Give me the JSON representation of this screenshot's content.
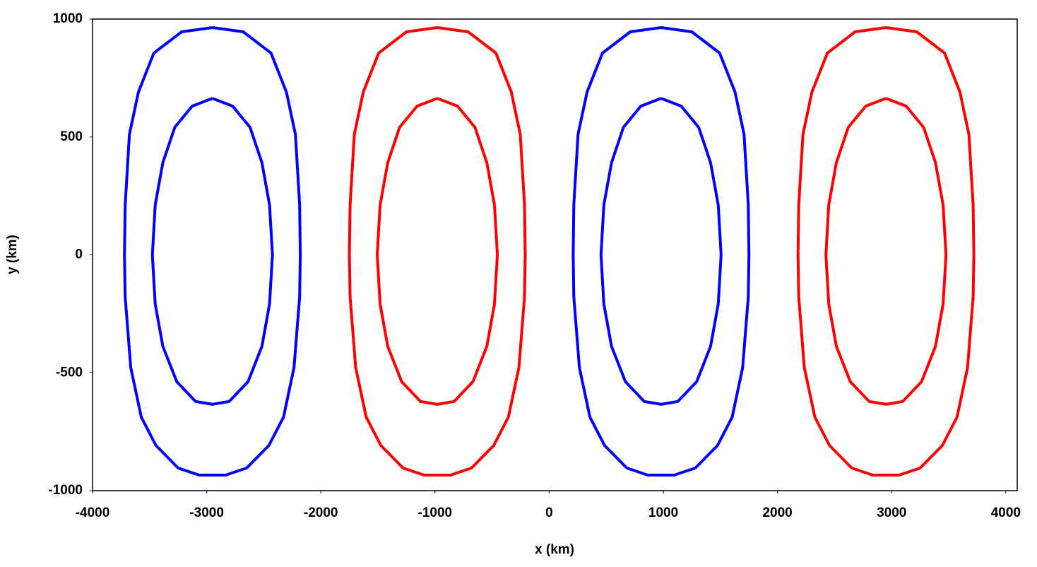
{
  "chart_data": {
    "type": "line",
    "xlabel": "x (km)",
    "ylabel": "y (km)",
    "xlim": [
      -4000,
      4100
    ],
    "ylim": [
      -1000,
      1000
    ],
    "xticks": [
      -4000,
      -3000,
      -2000,
      -1000,
      0,
      1000,
      2000,
      3000,
      4000
    ],
    "yticks": [
      -1000,
      -500,
      0,
      500,
      1000
    ],
    "grid": false,
    "series": [
      {
        "color": "#0000ff",
        "x": [
          -2950,
          -2680,
          -2437,
          -2302,
          -2223,
          -2186,
          -2180,
          -2186,
          -2235,
          -2327,
          -2455,
          -2650,
          -2834,
          -3066,
          -3250,
          -3445,
          -3573,
          -3665,
          -3714,
          -3720,
          -3714,
          -3677,
          -3598,
          -3463,
          -3220,
          -2950
        ],
        "y": [
          964,
          946,
          856,
          691,
          511,
          211,
          0,
          -178,
          -478,
          -688,
          -808,
          -904,
          -934,
          -934,
          -904,
          -808,
          -688,
          -478,
          -178,
          0,
          211,
          511,
          691,
          856,
          946,
          964
        ]
      },
      {
        "color": "#0000ff",
        "x": [
          -2950,
          -2773,
          -2620,
          -2516,
          -2449,
          -2424,
          -2449,
          -2516,
          -2638,
          -2803,
          -2950,
          -3097,
          -3262,
          -3384,
          -3451,
          -3476,
          -3451,
          -3384,
          -3280,
          -3127,
          -2950
        ],
        "y": [
          664,
          631,
          541,
          391,
          211,
          0,
          -208,
          -388,
          -538,
          -622,
          -634,
          -622,
          -538,
          -388,
          -208,
          0,
          211,
          391,
          541,
          631,
          664
        ]
      },
      {
        "color": "#ff0000",
        "x": [
          -980,
          -710,
          -467,
          -332,
          -253,
          -216,
          -210,
          -216,
          -265,
          -357,
          -485,
          -680,
          -864,
          -1096,
          -1280,
          -1475,
          -1603,
          -1695,
          -1744,
          -1750,
          -1744,
          -1707,
          -1628,
          -1493,
          -1250,
          -980
        ],
        "y": [
          964,
          946,
          856,
          691,
          511,
          211,
          0,
          -178,
          -478,
          -688,
          -808,
          -904,
          -934,
          -934,
          -904,
          -808,
          -688,
          -478,
          -178,
          0,
          211,
          511,
          691,
          856,
          946,
          964
        ]
      },
      {
        "color": "#ff0000",
        "x": [
          -980,
          -803,
          -650,
          -546,
          -479,
          -454,
          -479,
          -546,
          -668,
          -833,
          -980,
          -1127,
          -1292,
          -1414,
          -1481,
          -1506,
          -1481,
          -1414,
          -1310,
          -1157,
          -980
        ],
        "y": [
          664,
          631,
          541,
          391,
          211,
          0,
          -208,
          -388,
          -538,
          -622,
          -634,
          -622,
          -538,
          -388,
          -208,
          0,
          211,
          391,
          541,
          631,
          664
        ]
      },
      {
        "color": "#0000ff",
        "x": [
          980,
          1250,
          1493,
          1628,
          1707,
          1744,
          1750,
          1744,
          1695,
          1603,
          1475,
          1280,
          1096,
          864,
          680,
          485,
          357,
          265,
          216,
          210,
          216,
          253,
          332,
          467,
          710,
          980
        ],
        "y": [
          964,
          946,
          856,
          691,
          511,
          211,
          0,
          -178,
          -478,
          -688,
          -808,
          -904,
          -934,
          -934,
          -904,
          -808,
          -688,
          -478,
          -178,
          0,
          211,
          511,
          691,
          856,
          946,
          964
        ]
      },
      {
        "color": "#0000ff",
        "x": [
          980,
          1157,
          1310,
          1414,
          1481,
          1506,
          1481,
          1414,
          1292,
          1127,
          980,
          833,
          668,
          546,
          479,
          454,
          479,
          546,
          650,
          803,
          980
        ],
        "y": [
          664,
          631,
          541,
          391,
          211,
          0,
          -208,
          -388,
          -538,
          -622,
          -634,
          -622,
          -538,
          -388,
          -208,
          0,
          211,
          391,
          541,
          631,
          664
        ]
      },
      {
        "color": "#ff0000",
        "x": [
          2950,
          3220,
          3463,
          3598,
          3677,
          3714,
          3720,
          3714,
          3665,
          3573,
          3445,
          3250,
          3066,
          2834,
          2650,
          2455,
          2327,
          2235,
          2186,
          2180,
          2186,
          2223,
          2302,
          2437,
          2680,
          2950
        ],
        "y": [
          964,
          946,
          856,
          691,
          511,
          211,
          0,
          -178,
          -478,
          -688,
          -808,
          -904,
          -934,
          -934,
          -904,
          -808,
          -688,
          -478,
          -178,
          0,
          211,
          511,
          691,
          856,
          946,
          964
        ]
      },
      {
        "color": "#ff0000",
        "x": [
          2950,
          3127,
          3280,
          3384,
          3451,
          3476,
          3451,
          3384,
          3262,
          3097,
          2950,
          2803,
          2638,
          2516,
          2449,
          2424,
          2449,
          2516,
          2620,
          2773,
          2950
        ],
        "y": [
          664,
          631,
          541,
          391,
          211,
          0,
          -208,
          -388,
          -538,
          -622,
          -634,
          -622,
          -538,
          -388,
          -208,
          0,
          211,
          391,
          541,
          631,
          664
        ]
      }
    ]
  }
}
